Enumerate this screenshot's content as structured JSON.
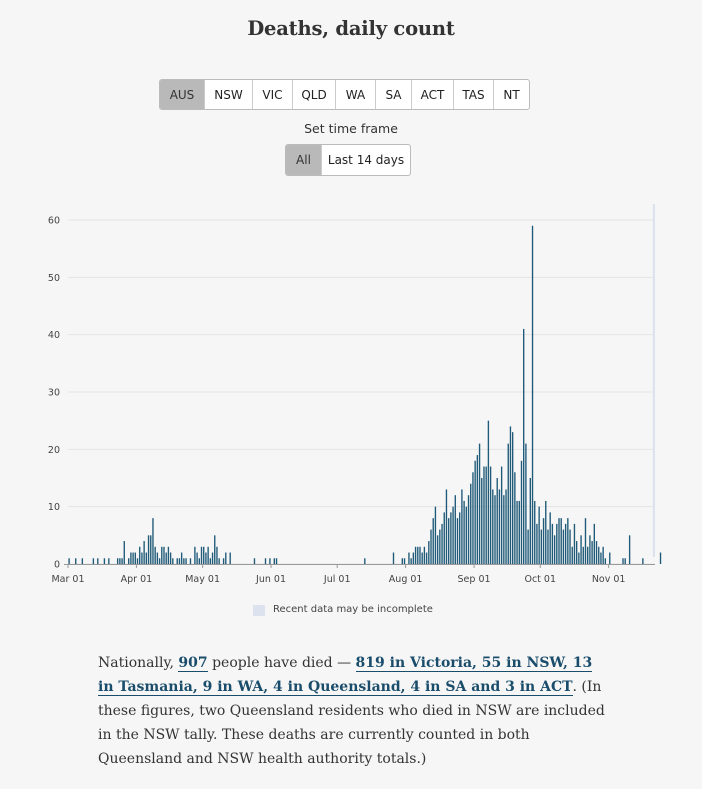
{
  "title": "Deaths, daily count",
  "state_buttons": [
    {
      "label": "AUS",
      "active": true
    },
    {
      "label": "NSW",
      "active": false
    },
    {
      "label": "VIC",
      "active": false
    },
    {
      "label": "QLD",
      "active": false
    },
    {
      "label": "WA",
      "active": false
    },
    {
      "label": "SA",
      "active": false
    },
    {
      "label": "ACT",
      "active": false
    },
    {
      "label": "TAS",
      "active": false
    },
    {
      "label": "NT",
      "active": false
    }
  ],
  "time_frame": {
    "label": "Set time frame",
    "buttons": [
      {
        "label": "All",
        "active": true
      },
      {
        "label": "Last 14 days",
        "active": false
      }
    ]
  },
  "colors": {
    "bar": "#1f5a78",
    "incomplete": "#dde3ee",
    "grid": "#e4e4e4"
  },
  "chart_data": {
    "type": "bar",
    "title": "Deaths, daily count",
    "ylim": [
      0,
      60
    ],
    "yticks": [
      0,
      10,
      20,
      30,
      40,
      50,
      60
    ],
    "xlim": [
      "2020-03-01",
      "2020-11-22"
    ],
    "xticks": [
      {
        "date": "2020-03-01",
        "label": "Mar 01"
      },
      {
        "date": "2020-04-01",
        "label": "Apr 01"
      },
      {
        "date": "2020-05-01",
        "label": "May 01"
      },
      {
        "date": "2020-06-01",
        "label": "Jun 01"
      },
      {
        "date": "2020-07-01",
        "label": "Jul 01"
      },
      {
        "date": "2020-08-01",
        "label": "Aug 01"
      },
      {
        "date": "2020-09-01",
        "label": "Sep 01"
      },
      {
        "date": "2020-10-01",
        "label": "Oct 01"
      },
      {
        "date": "2020-11-01",
        "label": "Nov 01"
      }
    ],
    "incomplete_from": "2020-11-21",
    "legend": {
      "label": "Recent data may be incomplete",
      "position": "bottom"
    },
    "series": [
      {
        "start_date": "2020-03-01",
        "values": [
          1,
          0,
          0,
          1,
          0,
          0,
          1,
          0,
          0,
          0,
          0,
          1,
          0,
          1,
          0,
          0,
          1,
          0,
          1,
          0,
          0,
          0,
          1,
          1,
          1,
          4,
          0,
          1,
          2,
          2,
          2,
          1,
          3,
          2,
          4,
          2,
          5,
          5,
          8,
          3,
          2,
          1,
          3,
          3,
          2,
          3,
          2,
          1,
          0,
          1,
          1,
          2,
          1,
          1,
          0,
          1,
          0,
          3,
          2,
          1,
          3,
          3,
          2,
          3,
          1,
          2,
          5,
          3,
          1,
          0,
          1,
          2,
          0,
          2,
          0,
          0,
          0,
          0,
          0,
          0,
          0,
          0,
          0,
          0,
          1,
          0,
          0,
          0,
          0,
          1,
          0,
          1,
          0,
          1,
          1,
          0,
          0,
          0,
          0,
          0,
          0,
          0,
          0,
          0,
          0,
          0,
          0,
          0,
          0,
          0,
          0,
          0,
          0,
          0,
          0,
          0,
          0,
          0,
          0,
          0,
          0,
          0,
          0,
          0,
          0,
          0,
          0,
          0,
          0,
          0,
          0,
          0,
          0,
          0,
          1,
          0,
          0,
          0,
          0,
          0,
          0,
          0,
          0,
          0,
          0,
          0,
          0,
          2,
          0,
          0,
          0,
          1,
          1,
          0,
          2,
          1,
          2,
          3,
          3,
          3,
          2,
          3,
          2,
          4,
          6,
          8,
          10,
          5,
          6,
          7,
          9,
          13,
          8,
          9,
          10,
          12,
          8,
          9,
          13,
          11,
          10,
          12,
          14,
          16,
          18,
          19,
          21,
          15,
          17,
          17,
          25,
          17,
          13,
          12,
          15,
          13,
          17,
          12,
          13,
          21,
          24,
          23,
          16,
          11,
          11,
          18,
          41,
          21,
          6,
          15,
          59,
          11,
          7,
          10,
          6,
          8,
          11,
          6,
          9,
          7,
          5,
          7,
          8,
          8,
          6,
          7,
          8,
          6,
          3,
          7,
          4,
          2,
          5,
          3,
          8,
          3,
          5,
          4,
          7,
          4,
          3,
          2,
          3,
          1,
          0,
          2,
          0,
          0,
          0,
          0,
          0,
          1,
          1,
          0,
          5,
          0,
          0,
          0,
          0,
          0,
          1,
          0,
          0,
          0,
          0,
          0,
          0,
          0,
          2,
          0,
          0,
          0,
          0,
          0,
          0,
          0,
          0,
          0,
          0,
          0,
          0,
          0,
          0,
          0,
          0,
          0,
          0,
          0,
          0,
          0,
          0,
          0,
          0,
          0,
          0
        ]
      }
    ]
  },
  "paragraph": {
    "p1": "Nationally, ",
    "link1": "907",
    "p2": " people have died — ",
    "link2": "819 in Victoria, 55 in NSW, 13 in Tasmania, 9 in WA, 4 in Queensland, 4 in SA and 3 in ACT",
    "p3": ". (In these figures, two Queensland residents who died in NSW are included in the NSW tally. These deaths are currently counted in both Queensland and NSW health authority totals.)"
  }
}
